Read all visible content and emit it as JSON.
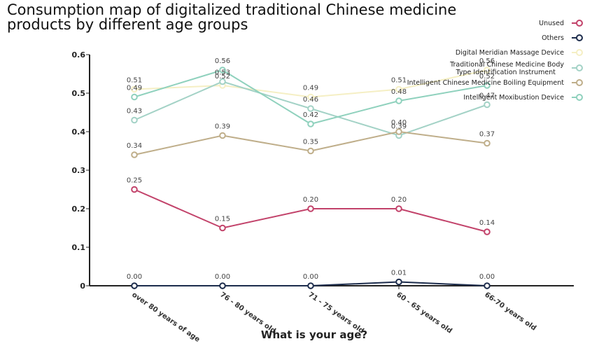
{
  "chart_data": {
    "type": "line",
    "title": "Consumption map of digitalized traditional Chinese medicine products by different age groups",
    "xlabel": "What is your age?",
    "ylabel": "",
    "ylim": [
      0,
      0.6
    ],
    "yticks": [
      "0",
      "0.1",
      "0.2",
      "0.3",
      "0.4",
      "0.5",
      "0.6"
    ],
    "categories": [
      "over 80 years of age",
      "76 - 80 years old",
      "71 - 75 years old",
      "60 - 65 years old",
      "66-70 years old"
    ],
    "series": [
      {
        "name": "Unused",
        "color": "#c2426a",
        "values": [
          0.25,
          0.15,
          0.2,
          0.2,
          0.14
        ],
        "labels": [
          "0.25",
          "0.15",
          "0.20",
          "0.20",
          "0.14"
        ]
      },
      {
        "name": "Others",
        "color": "#1c2c4c",
        "values": [
          0.0,
          0.0,
          0.0,
          0.01,
          0.0
        ],
        "labels": [
          "0.00",
          "0.00",
          "0.00",
          "0.01",
          "0.00"
        ]
      },
      {
        "name": "Digital Meridian Massage Device",
        "color": "#f5efc4",
        "values": [
          0.51,
          0.52,
          0.49,
          0.51,
          0.56
        ],
        "labels": [
          "0.51",
          "0.52",
          "0.49",
          "0.51",
          "0.56"
        ]
      },
      {
        "name": "Traditional Chinese Medicine Body Type Identification Instrument",
        "color": "#a3d2c6",
        "values": [
          0.43,
          0.53,
          0.46,
          0.39,
          0.47
        ],
        "labels": [
          "0.43",
          "0.53",
          "0.46",
          "0.39",
          "0.47"
        ]
      },
      {
        "name": "Intelligent Chinese Medicine Boiling Equipment",
        "color": "#bfae8a",
        "values": [
          0.34,
          0.39,
          0.35,
          0.4,
          0.37
        ],
        "labels": [
          "0.34",
          "0.39",
          "0.35",
          "0.40",
          "0.37"
        ]
      },
      {
        "name": "Intelligent Moxibustion Device",
        "color": "#8fd1bd",
        "values": [
          0.49,
          0.56,
          0.42,
          0.48,
          0.52
        ],
        "labels": [
          "0.49",
          "0.56",
          "0.42",
          "0.48",
          "0.52"
        ]
      }
    ],
    "legend_position": "top-right",
    "grid": false
  }
}
